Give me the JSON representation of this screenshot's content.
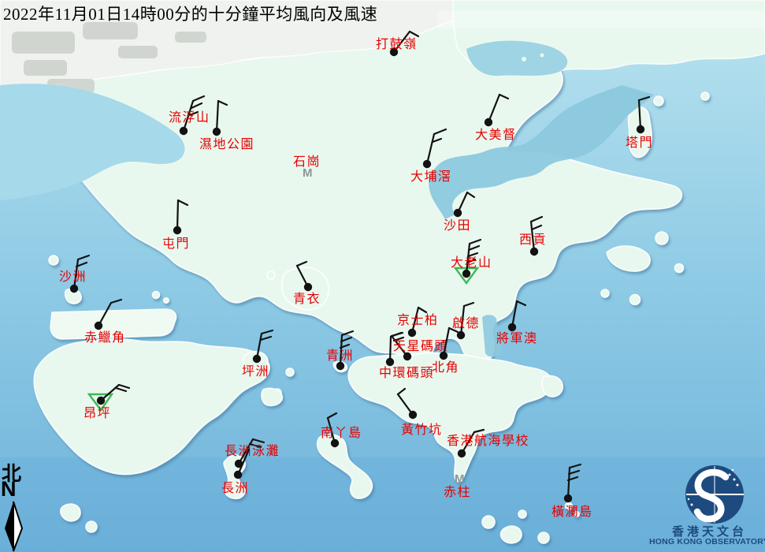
{
  "title": "2022年11月01日14時00分的十分鐘平均風向及風速",
  "compass": {
    "cjk": "北",
    "en": "N"
  },
  "logo": {
    "name_cjk": "香港天文台",
    "name_en": "HONG KONG OBSERVATORY"
  },
  "colors": {
    "label_red": "#e60000",
    "barb_black": "#121212",
    "calm_green": "#3db954",
    "missing_gray": "#8f9595",
    "logo_navy": "#1d4b80",
    "land": "#e9f8ef",
    "water_top": "#b9e3ef",
    "water_mid": "#8fcbe5",
    "water_bottom": "#6eb2da"
  },
  "missing_marker_glyph": "M",
  "stations": [
    {
      "name": "打鼓嶺",
      "dot": [
        500,
        66
      ],
      "staff": [
        500,
        66,
        520,
        40
      ],
      "barbs": [
        [
          520,
          40,
          531,
          46
        ]
      ],
      "label": [
        477,
        47
      ]
    },
    {
      "name": "流浮山",
      "dot": [
        233,
        166
      ],
      "staff": [
        233,
        166,
        245,
        128
      ],
      "barbs": [
        [
          245,
          128,
          259,
          122
        ],
        [
          243,
          137,
          256,
          131
        ],
        [
          241,
          146,
          251,
          142
        ]
      ],
      "label": [
        214,
        140
      ]
    },
    {
      "name": "濕地公園",
      "dot": [
        275,
        167
      ],
      "staff": [
        275,
        167,
        277,
        128
      ],
      "barbs": [
        [
          277,
          128,
          288,
          133
        ]
      ],
      "label": [
        253,
        174
      ]
    },
    {
      "name": "石崗",
      "m": [
        384,
        211
      ],
      "label": [
        372,
        196
      ]
    },
    {
      "name": "大美督",
      "dot": [
        620,
        155
      ],
      "staff": [
        620,
        155,
        634,
        120
      ],
      "barbs": [
        [
          634,
          120,
          645,
          125
        ]
      ],
      "label": [
        603,
        162
      ]
    },
    {
      "name": "塔門",
      "dot": [
        813,
        164
      ],
      "staff": [
        813,
        164,
        811,
        127
      ],
      "barbs": [
        [
          811,
          127,
          824,
          123
        ]
      ],
      "label": [
        794,
        172
      ]
    },
    {
      "name": "大埔滘",
      "dot": [
        542,
        208
      ],
      "staff": [
        542,
        208,
        551,
        170
      ],
      "barbs": [
        [
          551,
          170,
          566,
          164
        ],
        [
          549,
          180,
          560,
          176
        ]
      ],
      "label": [
        521,
        215
      ]
    },
    {
      "name": "沙田",
      "dot": [
        581,
        270
      ],
      "staff": [
        581,
        270,
        593,
        244
      ],
      "barbs": [
        [
          593,
          244,
          602,
          250
        ]
      ],
      "label": [
        563,
        277
      ]
    },
    {
      "name": "屯門",
      "dot": [
        225,
        292
      ],
      "staff": [
        225,
        292,
        226,
        254
      ],
      "barbs": [
        [
          226,
          254,
          238,
          260
        ]
      ],
      "label": [
        206,
        300
      ]
    },
    {
      "name": "沙洲",
      "dot": [
        94,
        366
      ],
      "staff": [
        94,
        366,
        99,
        329
      ],
      "barbs": [
        [
          99,
          329,
          113,
          324
        ],
        [
          97,
          338,
          110,
          333
        ]
      ],
      "label": [
        75,
        342
      ]
    },
    {
      "name": "赤鱲角",
      "dot": [
        125,
        413
      ],
      "staff": [
        125,
        413,
        141,
        384
      ],
      "barbs": [
        [
          141,
          384,
          154,
          380
        ]
      ],
      "label": [
        107,
        419
      ]
    },
    {
      "name": "青衣",
      "dot": [
        391,
        364
      ],
      "staff": [
        391,
        364,
        377,
        337
      ],
      "barbs": [
        [
          377,
          337,
          389,
          332
        ]
      ],
      "label": [
        372,
        370
      ]
    },
    {
      "name": "西貢",
      "dot": [
        678,
        319
      ],
      "staff": [
        678,
        319,
        674,
        281
      ],
      "barbs": [
        [
          674,
          281,
          688,
          275
        ],
        [
          675,
          291,
          687,
          286
        ]
      ],
      "label": [
        659,
        295
      ]
    },
    {
      "name": "大老山",
      "dot": [
        592,
        347
      ],
      "triangle": [
        [
          578,
          340
        ],
        [
          606,
          340
        ],
        [
          592,
          359
        ]
      ],
      "staff": [
        592,
        347,
        596,
        309
      ],
      "barbs": [
        [
          596,
          309,
          610,
          304
        ],
        [
          595,
          317,
          608,
          312
        ],
        [
          594,
          325,
          606,
          321
        ],
        [
          593,
          333,
          603,
          329
        ]
      ],
      "label": [
        572,
        324
      ]
    },
    {
      "name": "京士柏",
      "dot": [
        523,
        422
      ],
      "staff": [
        523,
        422,
        531,
        390
      ],
      "barbs": [
        [
          531,
          390,
          541,
          396
        ]
      ],
      "label": [
        504,
        397
      ]
    },
    {
      "name": "啟德",
      "dot": [
        585,
        425
      ],
      "staff": [
        585,
        425,
        589,
        388
      ],
      "barbs": [
        [
          589,
          388,
          601,
          384
        ]
      ],
      "label": [
        574,
        401
      ]
    },
    {
      "name": "天星碼頭",
      "dot": [
        517,
        452
      ],
      "staff": [
        517,
        452,
        497,
        426
      ],
      "barbs": [
        [
          497,
          426,
          511,
          422
        ],
        [
          500,
          432,
          512,
          428
        ]
      ],
      "label": [
        499,
        430
      ]
    },
    {
      "name": "中環碼頭",
      "dot": [
        495,
        459
      ],
      "staff": [
        495,
        459,
        496,
        427
      ],
      "barbs": [
        [
          496,
          427,
          509,
          422
        ]
      ],
      "label": [
        481,
        464
      ]
    },
    {
      "name": "北角",
      "dot": [
        563,
        451
      ],
      "staff": [
        563,
        451,
        570,
        416
      ],
      "barbs": [
        [
          570,
          416,
          581,
          421
        ]
      ],
      "label": [
        548,
        457
      ]
    },
    {
      "name": "青洲",
      "dot": [
        432,
        464
      ],
      "staff": [
        432,
        464,
        434,
        425
      ],
      "barbs": [
        [
          434,
          425,
          448,
          420
        ],
        [
          433,
          433,
          446,
          428
        ],
        [
          432,
          441,
          443,
          437
        ]
      ],
      "label": [
        414,
        442
      ]
    },
    {
      "name": "將軍澳",
      "dot": [
        650,
        415
      ],
      "staff": [
        650,
        415,
        656,
        382
      ],
      "barbs": [
        [
          656,
          382,
          667,
          387
        ]
      ],
      "label": [
        630,
        420
      ]
    },
    {
      "name": "坪洲",
      "dot": [
        326,
        455
      ],
      "staff": [
        326,
        455,
        332,
        423
      ],
      "barbs": [
        [
          332,
          423,
          346,
          419
        ],
        [
          331,
          431,
          344,
          427
        ]
      ],
      "label": [
        307,
        462
      ]
    },
    {
      "name": "昂坪",
      "dot": [
        128,
        508
      ],
      "triangle": [
        [
          113,
          500
        ],
        [
          142,
          500
        ],
        [
          128,
          520
        ]
      ],
      "staff": [
        128,
        508,
        151,
        488
      ],
      "barbs": [
        [
          151,
          488,
          164,
          492
        ],
        [
          147,
          492,
          160,
          496
        ]
      ],
      "label": [
        106,
        515
      ]
    },
    {
      "name": "南丫島",
      "dot": [
        425,
        562
      ],
      "staff": [
        425,
        562,
        416,
        530
      ],
      "barbs": [
        [
          416,
          530,
          427,
          524
        ]
      ],
      "label": [
        407,
        540
      ]
    },
    {
      "name": "黃竹坑",
      "dot": [
        524,
        526
      ],
      "staff": [
        524,
        526,
        505,
        500
      ],
      "barbs": [
        [
          505,
          500,
          514,
          493
        ]
      ],
      "label": [
        509,
        536
      ]
    },
    {
      "name": "香港航海學校",
      "dot": [
        586,
        575
      ],
      "staff": [
        586,
        575,
        602,
        548
      ],
      "barbs": [
        [
          602,
          548,
          614,
          545
        ]
      ],
      "label": [
        567,
        550
      ]
    },
    {
      "name": "赤柱",
      "m": [
        577,
        599
      ],
      "label": [
        563,
        615
      ]
    },
    {
      "name": "長洲泳灘",
      "dot": [
        303,
        588
      ],
      "staff": [
        303,
        588,
        321,
        557
      ],
      "barbs": [
        [
          321,
          557,
          335,
          561
        ],
        [
          317,
          563,
          331,
          567
        ]
      ],
      "label": [
        285,
        563
      ]
    },
    {
      "name": "長洲",
      "dot": [
        302,
        602
      ],
      "staff": [
        302,
        602,
        316,
        570
      ],
      "barbs": [],
      "label": [
        281,
        610
      ]
    },
    {
      "name": "橫瀾島",
      "dot": [
        721,
        632
      ],
      "staff": [
        721,
        632,
        723,
        593
      ],
      "barbs": [
        [
          723,
          593,
          737,
          589
        ],
        [
          722,
          601,
          735,
          597
        ],
        [
          721,
          609,
          733,
          605
        ]
      ],
      "label": [
        700,
        640
      ]
    }
  ]
}
